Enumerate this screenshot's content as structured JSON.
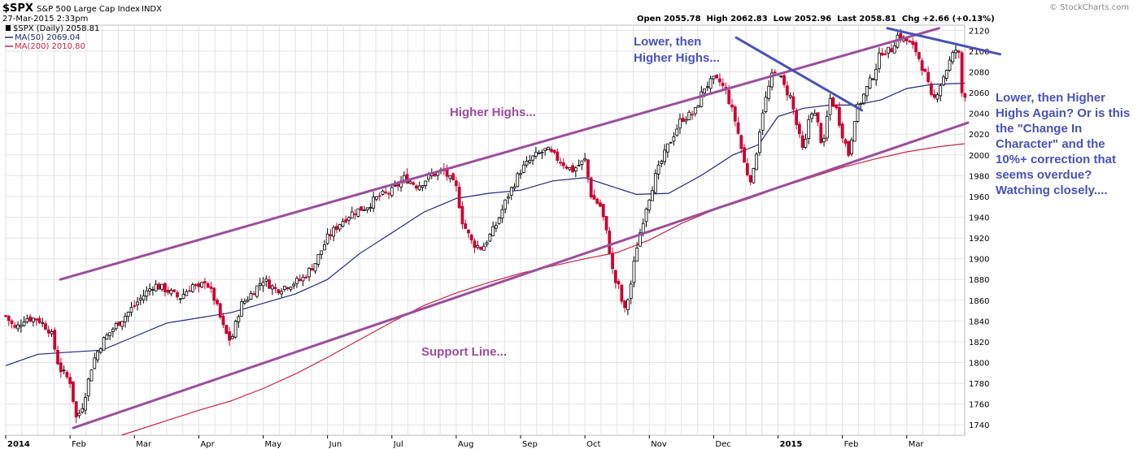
{
  "header": {
    "symbol": "$SPX",
    "description": "S&P 500 Large Cap Index",
    "exchange": "INDX",
    "datetime": "27-Mar-2015 2:33pm",
    "copyright": "© StockCharts.com",
    "quote": "Open 2055.78  High 2062.83  Low 2052.96  Last 2058.81  Chg +2.66 (+0.13%)"
  },
  "legend": {
    "price": "$SPX (Daily) 2058.81",
    "ma50": "MA(50) 2069.04",
    "ma200": "MA(200) 2010.80"
  },
  "annotations": {
    "higher_highs": "Higher Highs...",
    "lower_then_1": "Lower, then",
    "lower_then_2": "Higher Highs...",
    "support_line": "Support Line...",
    "side_note": "Lower, then Higher Highs Again? Or is this the \"Change In Character\" and the 10%+ correction that seems overdue? Watching closely...."
  },
  "colors": {
    "up_candle": "#000000",
    "down_candle": "#cc0033",
    "ma50": "#1f2a7a",
    "ma200": "#cc2244",
    "channel": "#9b4f9b",
    "downtrend": "#4a52b8",
    "grid": "#e3e3e3"
  },
  "chart_data": {
    "type": "candlestick",
    "title": "$SPX S&P 500 Large Cap Index INDX",
    "x_labels": [
      "2014",
      "Feb",
      "Mar",
      "Apr",
      "May",
      "Jun",
      "Jul",
      "Aug",
      "Sep",
      "Oct",
      "Nov",
      "Dec",
      "2015",
      "Feb",
      "Mar"
    ],
    "x_label_months": [
      0,
      1,
      2,
      3,
      4,
      5,
      6,
      7,
      8,
      9,
      10,
      11,
      12,
      13,
      14
    ],
    "y_ticks": [
      1740,
      1760,
      1780,
      1800,
      1820,
      1840,
      1860,
      1880,
      1900,
      1920,
      1940,
      1960,
      1980,
      2000,
      2020,
      2040,
      2060,
      2080,
      2100,
      2120
    ],
    "ylim": [
      1730,
      2125
    ],
    "x_range_months": [
      0,
      14.9
    ],
    "grid": true,
    "close_path": [
      [
        0.0,
        1845
      ],
      [
        0.15,
        1832
      ],
      [
        0.3,
        1843
      ],
      [
        0.5,
        1842
      ],
      [
        0.7,
        1830
      ],
      [
        0.83,
        1795
      ],
      [
        1.0,
        1782
      ],
      [
        1.1,
        1745
      ],
      [
        1.2,
        1760
      ],
      [
        1.35,
        1800
      ],
      [
        1.5,
        1820
      ],
      [
        1.7,
        1835
      ],
      [
        1.9,
        1848
      ],
      [
        2.1,
        1862
      ],
      [
        2.3,
        1875
      ],
      [
        2.5,
        1870
      ],
      [
        2.7,
        1862
      ],
      [
        2.9,
        1875
      ],
      [
        3.0,
        1870
      ],
      [
        3.1,
        1880
      ],
      [
        3.25,
        1860
      ],
      [
        3.4,
        1830
      ],
      [
        3.5,
        1820
      ],
      [
        3.65,
        1855
      ],
      [
        3.8,
        1865
      ],
      [
        4.0,
        1880
      ],
      [
        4.2,
        1870
      ],
      [
        4.4,
        1875
      ],
      [
        4.6,
        1880
      ],
      [
        4.8,
        1895
      ],
      [
        5.0,
        1920
      ],
      [
        5.2,
        1935
      ],
      [
        5.4,
        1945
      ],
      [
        5.6,
        1950
      ],
      [
        5.8,
        1960
      ],
      [
        6.0,
        1965
      ],
      [
        6.2,
        1978
      ],
      [
        6.4,
        1970
      ],
      [
        6.6,
        1980
      ],
      [
        6.8,
        1985
      ],
      [
        7.0,
        1968
      ],
      [
        7.1,
        1935
      ],
      [
        7.25,
        1915
      ],
      [
        7.4,
        1910
      ],
      [
        7.6,
        1930
      ],
      [
        7.8,
        1960
      ],
      [
        8.0,
        1985
      ],
      [
        8.2,
        1998
      ],
      [
        8.4,
        2005
      ],
      [
        8.6,
        1995
      ],
      [
        8.8,
        1985
      ],
      [
        9.0,
        1995
      ],
      [
        9.1,
        1960
      ],
      [
        9.25,
        1950
      ],
      [
        9.35,
        1920
      ],
      [
        9.45,
        1880
      ],
      [
        9.55,
        1870
      ],
      [
        9.6,
        1845
      ],
      [
        9.7,
        1870
      ],
      [
        9.8,
        1910
      ],
      [
        9.95,
        1950
      ],
      [
        10.1,
        1980
      ],
      [
        10.3,
        2010
      ],
      [
        10.5,
        2035
      ],
      [
        10.7,
        2040
      ],
      [
        10.85,
        2065
      ],
      [
        11.0,
        2072
      ],
      [
        11.1,
        2070
      ],
      [
        11.2,
        2060
      ],
      [
        11.35,
        2030
      ],
      [
        11.5,
        1985
      ],
      [
        11.6,
        1975
      ],
      [
        11.75,
        2040
      ],
      [
        11.9,
        2075
      ],
      [
        12.0,
        2080
      ],
      [
        12.1,
        2065
      ],
      [
        12.2,
        2055
      ],
      [
        12.3,
        2025
      ],
      [
        12.4,
        2000
      ],
      [
        12.5,
        2045
      ],
      [
        12.6,
        2035
      ],
      [
        12.7,
        2005
      ],
      [
        12.8,
        2055
      ],
      [
        12.9,
        2045
      ],
      [
        13.0,
        2020
      ],
      [
        13.1,
        2000
      ],
      [
        13.2,
        2040
      ],
      [
        13.35,
        2060
      ],
      [
        13.5,
        2080
      ],
      [
        13.6,
        2100
      ],
      [
        13.75,
        2100
      ],
      [
        13.85,
        2115
      ],
      [
        14.0,
        2110
      ],
      [
        14.15,
        2100
      ],
      [
        14.3,
        2075
      ],
      [
        14.4,
        2050
      ],
      [
        14.5,
        2065
      ],
      [
        14.6,
        2080
      ],
      [
        14.7,
        2095
      ],
      [
        14.8,
        2105
      ],
      [
        14.85,
        2060
      ],
      [
        14.9,
        2058.81
      ]
    ],
    "ma50_path": [
      [
        0.0,
        1797
      ],
      [
        0.5,
        1808
      ],
      [
        1.0,
        1810
      ],
      [
        1.5,
        1812
      ],
      [
        2.0,
        1825
      ],
      [
        2.5,
        1838
      ],
      [
        3.0,
        1843
      ],
      [
        3.5,
        1848
      ],
      [
        4.0,
        1857
      ],
      [
        4.5,
        1866
      ],
      [
        5.0,
        1880
      ],
      [
        5.5,
        1905
      ],
      [
        6.0,
        1925
      ],
      [
        6.5,
        1945
      ],
      [
        7.0,
        1958
      ],
      [
        7.5,
        1963
      ],
      [
        8.0,
        1966
      ],
      [
        8.5,
        1975
      ],
      [
        9.0,
        1978
      ],
      [
        9.4,
        1970
      ],
      [
        9.8,
        1962
      ],
      [
        10.3,
        1963
      ],
      [
        10.8,
        1980
      ],
      [
        11.3,
        2000
      ],
      [
        11.7,
        2010
      ],
      [
        12.0,
        2037
      ],
      [
        12.4,
        2045
      ],
      [
        12.8,
        2048
      ],
      [
        13.2,
        2048
      ],
      [
        13.6,
        2053
      ],
      [
        14.0,
        2064
      ],
      [
        14.4,
        2068
      ],
      [
        14.9,
        2069.04
      ]
    ],
    "ma200_path": [
      [
        1.8,
        1730
      ],
      [
        2.5,
        1744
      ],
      [
        3.0,
        1754
      ],
      [
        3.5,
        1763
      ],
      [
        4.0,
        1775
      ],
      [
        4.5,
        1789
      ],
      [
        5.0,
        1805
      ],
      [
        5.5,
        1822
      ],
      [
        6.0,
        1839
      ],
      [
        6.5,
        1855
      ],
      [
        7.0,
        1867
      ],
      [
        7.5,
        1877
      ],
      [
        8.0,
        1886
      ],
      [
        8.5,
        1893
      ],
      [
        9.0,
        1900
      ],
      [
        9.5,
        1906
      ],
      [
        10.0,
        1918
      ],
      [
        10.5,
        1934
      ],
      [
        11.0,
        1947
      ],
      [
        11.5,
        1957
      ],
      [
        12.0,
        1968
      ],
      [
        12.5,
        1978
      ],
      [
        13.0,
        1988
      ],
      [
        13.5,
        1996
      ],
      [
        14.0,
        2003
      ],
      [
        14.5,
        2008
      ],
      [
        14.9,
        2010.8
      ]
    ],
    "trendlines": [
      {
        "name": "upper channel",
        "from": [
          0.85,
          1880
        ],
        "to": [
          14.5,
          2122
        ]
      },
      {
        "name": "support",
        "from": [
          1.05,
          1737
        ],
        "to": [
          14.95,
          2031
        ]
      },
      {
        "name": "short downtrend",
        "from": [
          11.35,
          2113
        ],
        "to": [
          13.3,
          2043
        ]
      },
      {
        "name": "downtrend from highs",
        "from": [
          13.7,
          2122
        ],
        "to": [
          15.45,
          2097
        ]
      }
    ]
  }
}
